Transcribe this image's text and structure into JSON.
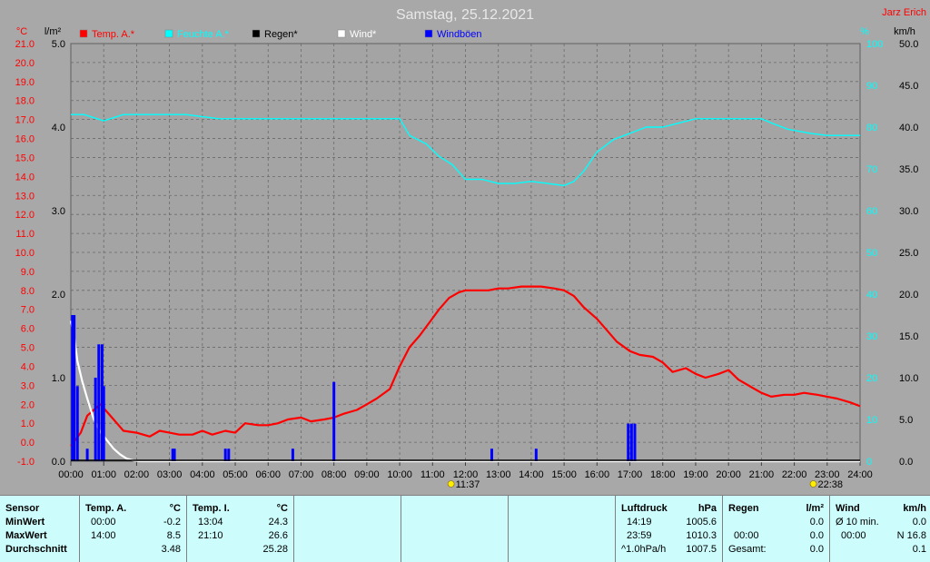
{
  "title": "Samstag, 25.12.2021",
  "author": "Jarz Erich",
  "units": {
    "temp": "°C",
    "rain": "l/m²",
    "humidity": "%",
    "wind": "km/h"
  },
  "legend": [
    {
      "label": "Temp. A.*",
      "color": "#ff0000"
    },
    {
      "label": "Feuchte A.*",
      "color": "#00ffff"
    },
    {
      "label": "Regen*",
      "color": "#000000"
    },
    {
      "label": "Wind*",
      "color": "#ffffff"
    },
    {
      "label": "Windböen",
      "color": "#0000ff"
    }
  ],
  "sun_events": {
    "sunrise": "11:37",
    "sunset": "22:38"
  },
  "chart_data": {
    "type": "line",
    "x_ticks": [
      "00:00",
      "01:00",
      "02:00",
      "03:00",
      "04:00",
      "05:00",
      "06:00",
      "07:00",
      "08:00",
      "09:00",
      "10:00",
      "11:00",
      "12:00",
      "13:00",
      "14:00",
      "15:00",
      "16:00",
      "17:00",
      "18:00",
      "19:00",
      "20:00",
      "21:00",
      "22:00",
      "23:00",
      "24:00"
    ],
    "x_range_hours": [
      0,
      24
    ],
    "y_axes": {
      "temp": {
        "ticks": [
          "21.0",
          "20.0",
          "19.0",
          "18.0",
          "17.0",
          "16.0",
          "15.0",
          "14.0",
          "13.0",
          "12.0",
          "11.0",
          "10.0",
          "9.0",
          "8.0",
          "7.0",
          "6.0",
          "5.0",
          "4.0",
          "3.0",
          "2.0",
          "1.0",
          "0.0",
          "-1.0"
        ],
        "range": [
          -1,
          21
        ]
      },
      "rain": {
        "ticks": [
          "5.0",
          "4.0",
          "3.0",
          "2.0",
          "1.0",
          "0.0"
        ],
        "range": [
          0,
          5
        ]
      },
      "humidity": {
        "ticks": [
          "100",
          "90",
          "80",
          "70",
          "60",
          "50",
          "40",
          "30",
          "20",
          "10",
          "0"
        ],
        "range": [
          0,
          100
        ]
      },
      "wind": {
        "ticks": [
          "50.0",
          "45.0",
          "40.0",
          "35.0",
          "30.0",
          "25.0",
          "20.0",
          "15.0",
          "10.0",
          "5.0",
          "0.0"
        ],
        "range": [
          0,
          50
        ]
      }
    },
    "grid": true,
    "series": [
      {
        "name": "Temp. A.*",
        "axis": "temp",
        "color": "#ff0000",
        "x": [
          0,
          0.3,
          0.5,
          0.7,
          0.9,
          1.1,
          1.3,
          1.6,
          2.0,
          2.4,
          2.7,
          3.0,
          3.3,
          3.7,
          4.0,
          4.3,
          4.7,
          5.0,
          5.3,
          5.7,
          6.0,
          6.3,
          6.6,
          7.0,
          7.3,
          7.7,
          8.0,
          8.3,
          8.7,
          9.0,
          9.3,
          9.7,
          10.0,
          10.3,
          10.6,
          10.9,
          11.2,
          11.5,
          11.8,
          12.0,
          12.3,
          12.7,
          13.0,
          13.3,
          13.7,
          14.0,
          14.3,
          14.7,
          15.0,
          15.3,
          15.6,
          16.0,
          16.3,
          16.6,
          17.0,
          17.3,
          17.7,
          18.0,
          18.3,
          18.7,
          19.0,
          19.3,
          19.7,
          20.0,
          20.3,
          20.7,
          21.0,
          21.3,
          21.7,
          22.0,
          22.3,
          22.7,
          23.0,
          23.3,
          23.7,
          24.0
        ],
        "y": [
          -0.2,
          0.5,
          1.4,
          1.7,
          2.0,
          1.6,
          1.2,
          0.6,
          0.5,
          0.3,
          0.6,
          0.5,
          0.4,
          0.4,
          0.6,
          0.4,
          0.6,
          0.5,
          1.0,
          0.9,
          0.9,
          1.0,
          1.2,
          1.3,
          1.1,
          1.2,
          1.3,
          1.5,
          1.7,
          2.0,
          2.3,
          2.8,
          4.0,
          5.0,
          5.6,
          6.3,
          7.0,
          7.6,
          7.9,
          8.0,
          8.0,
          8.0,
          8.1,
          8.1,
          8.2,
          8.2,
          8.2,
          8.1,
          8.0,
          7.7,
          7.1,
          6.5,
          5.9,
          5.3,
          4.8,
          4.6,
          4.5,
          4.2,
          3.7,
          3.9,
          3.6,
          3.4,
          3.6,
          3.8,
          3.3,
          2.9,
          2.6,
          2.4,
          2.5,
          2.5,
          2.6,
          2.5,
          2.4,
          2.3,
          2.1,
          1.9
        ]
      },
      {
        "name": "Feuchte A.*",
        "axis": "humidity",
        "color": "#00ffff",
        "x": [
          0,
          0.4,
          1.0,
          1.6,
          2.5,
          3.5,
          4.5,
          5.5,
          6.5,
          7.5,
          8.5,
          9.5,
          10.0,
          10.3,
          10.8,
          11.2,
          11.6,
          12.0,
          12.5,
          13.0,
          13.5,
          14.0,
          14.5,
          15.0,
          15.3,
          15.6,
          16.0,
          16.5,
          17.0,
          17.5,
          18.0,
          18.5,
          19.0,
          20.0,
          21.0,
          21.3,
          21.8,
          22.5,
          23.0,
          23.5,
          24.0
        ],
        "y": [
          83,
          83,
          81.5,
          83,
          83,
          83,
          82,
          82,
          82,
          82,
          82,
          82,
          82,
          78,
          76,
          73,
          71,
          67.5,
          67.5,
          66.5,
          66.5,
          67,
          66.5,
          66,
          67,
          69.5,
          74,
          77,
          78.5,
          80,
          80,
          81,
          82,
          82,
          82,
          81,
          79.5,
          78.5,
          78,
          78,
          78
        ]
      },
      {
        "name": "Wind*",
        "axis": "wind",
        "color": "#ffffff",
        "x": [
          0,
          0.1,
          0.2,
          0.35,
          0.5,
          0.7,
          0.9,
          1.1,
          1.3,
          1.5,
          1.7,
          1.9,
          2.1,
          24.0
        ],
        "y": [
          16.8,
          15,
          12,
          9.5,
          7.5,
          5,
          3.5,
          2.5,
          1.5,
          0.8,
          0.3,
          0.1,
          0,
          0
        ]
      },
      {
        "name": "Windböen",
        "axis": "wind",
        "color": "#0000ff",
        "bars": [
          {
            "x": 0.05,
            "y": 17.5
          },
          {
            "x": 0.1,
            "y": 17.5
          },
          {
            "x": 0.2,
            "y": 9
          },
          {
            "x": 0.5,
            "y": 1.5
          },
          {
            "x": 0.75,
            "y": 10
          },
          {
            "x": 0.85,
            "y": 14
          },
          {
            "x": 0.95,
            "y": 14
          },
          {
            "x": 1.0,
            "y": 9
          },
          {
            "x": 3.1,
            "y": 1.5
          },
          {
            "x": 3.15,
            "y": 1.5
          },
          {
            "x": 4.7,
            "y": 1.5
          },
          {
            "x": 4.8,
            "y": 1.5
          },
          {
            "x": 6.75,
            "y": 1.5
          },
          {
            "x": 8.0,
            "y": 9.5
          },
          {
            "x": 12.8,
            "y": 1.5
          },
          {
            "x": 14.15,
            "y": 1.5
          },
          {
            "x": 16.95,
            "y": 4.5
          },
          {
            "x": 17.05,
            "y": 4.5
          },
          {
            "x": 17.15,
            "y": 4.5
          }
        ]
      }
    ]
  },
  "stats": {
    "labels": {
      "sensor": "Sensor",
      "min": "MinWert",
      "max": "MaxWert",
      "avg": "Durchschnitt"
    },
    "temp_a": {
      "header": "Temp. A.",
      "unit": "°C",
      "min_time": "00:00",
      "min_val": "-0.2",
      "max_time": "14:00",
      "max_val": "8.5",
      "avg": "3.48"
    },
    "temp_i": {
      "header": "Temp. I.",
      "unit": "°C",
      "min_time": "13:04",
      "min_val": "24.3",
      "max_time": "21:10",
      "max_val": "26.6",
      "avg": "25.28"
    },
    "pressure": {
      "header": "Luftdruck",
      "unit": "hPa",
      "min_time": "14:19",
      "min_val": "1005.6",
      "max_time": "23:59",
      "max_val": "1010.3",
      "trend_label": "^1.0hPa/h",
      "trend_val": "1007.5"
    },
    "rain": {
      "header": "Regen",
      "unit": "l/m²",
      "max_time": "00:00",
      "max_val": "0.0",
      "min_val": "0.0",
      "total_label": "Gesamt:",
      "total_val": "0.0"
    },
    "wind": {
      "header": "Wind",
      "unit": "km/h",
      "row1_label": "Ø 10 min.",
      "row1_val": "0.0",
      "row2_time": "00:00",
      "row2_val": "N 16.8",
      "row3_val": "0.1"
    }
  }
}
